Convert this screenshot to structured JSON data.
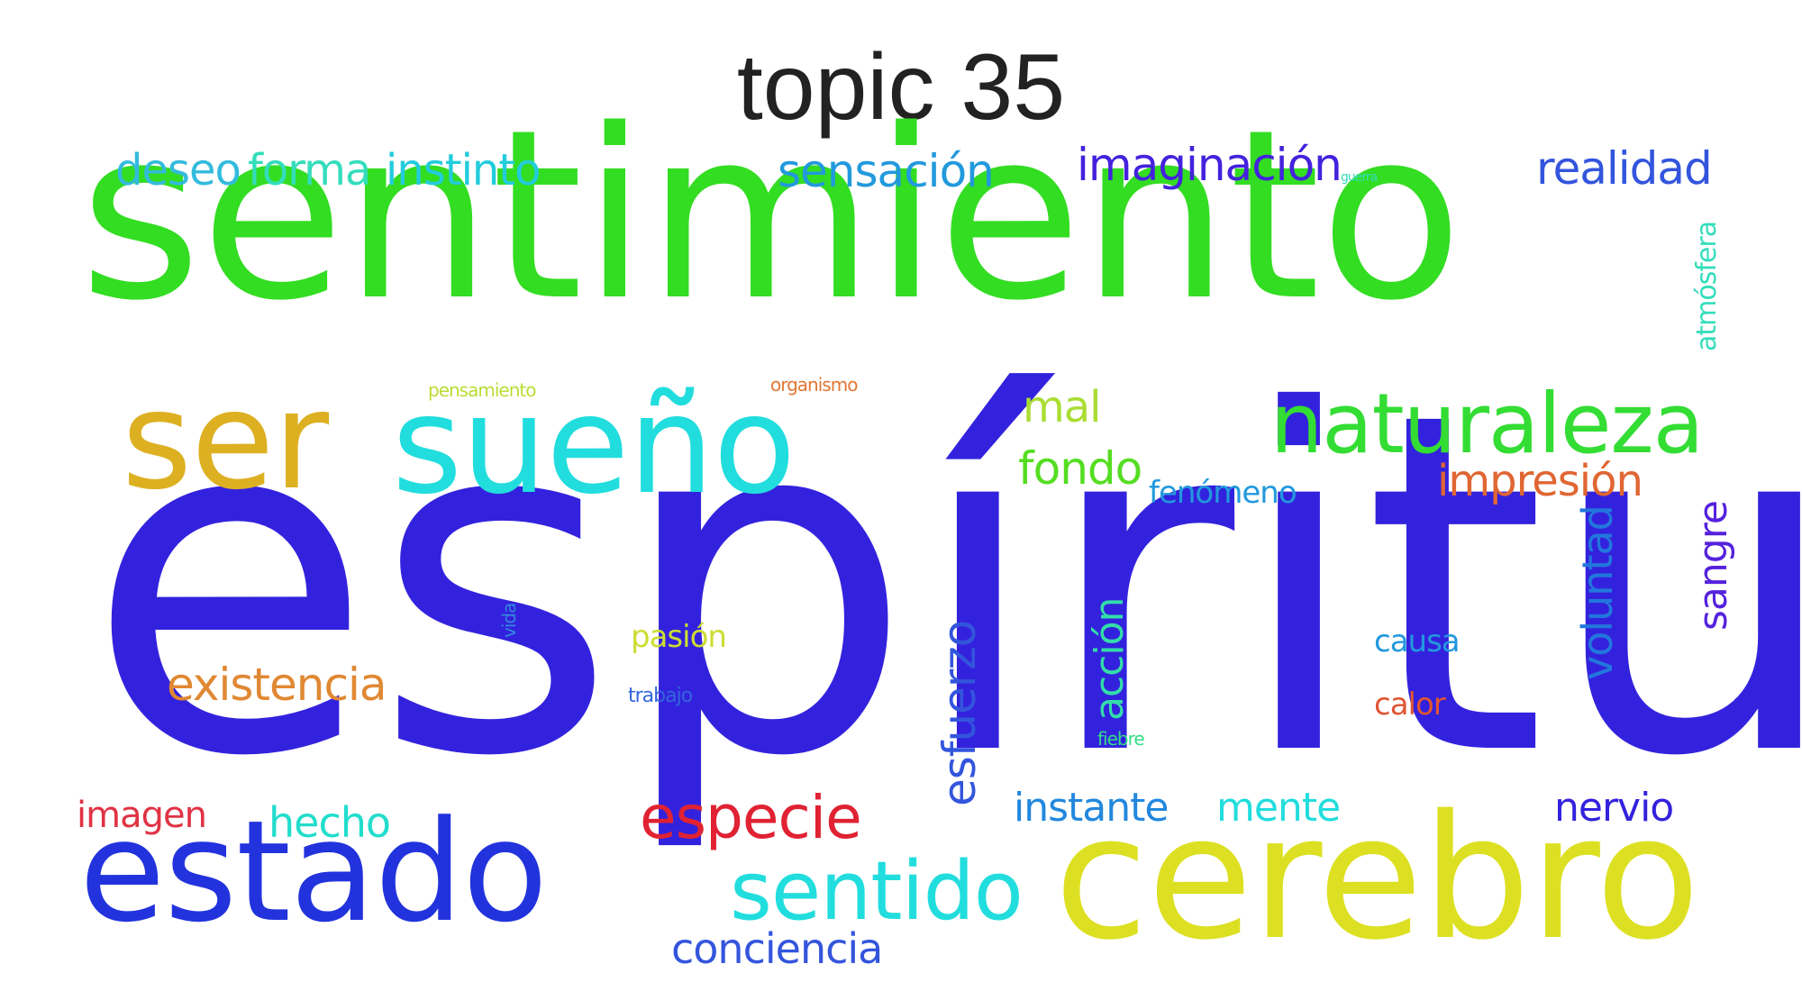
{
  "title": "topic 35",
  "words": [
    {
      "id": "espiritu",
      "text": "espíritu",
      "color": "#3322dd"
    },
    {
      "id": "sentimiento",
      "text": "sentimiento",
      "color": "#33dd22"
    },
    {
      "id": "cerebro",
      "text": "cerebro",
      "color": "#dde022"
    },
    {
      "id": "estado",
      "text": "estado",
      "color": "#2233dd"
    },
    {
      "id": "ser",
      "text": "ser",
      "color": "#ddb022"
    },
    {
      "id": "sueno",
      "text": "sueño",
      "color": "#22dddd"
    },
    {
      "id": "naturaleza",
      "text": "naturaleza",
      "color": "#33dd33"
    },
    {
      "id": "sentido",
      "text": "sentido",
      "color": "#22dddd"
    },
    {
      "id": "especie",
      "text": "especie",
      "color": "#e02233"
    },
    {
      "id": "existencia",
      "text": "existencia",
      "color": "#e08833"
    },
    {
      "id": "esfuerzo",
      "text": "esfuerzo",
      "color": "#3355dd"
    },
    {
      "id": "accion",
      "text": "acción",
      "color": "#33ddaa"
    },
    {
      "id": "voluntad",
      "text": "voluntad",
      "color": "#2277dd"
    },
    {
      "id": "sangre",
      "text": "sangre",
      "color": "#5522dd"
    },
    {
      "id": "impresion",
      "text": "impresión",
      "color": "#e06633"
    },
    {
      "id": "fondo",
      "text": "fondo",
      "color": "#55dd22"
    },
    {
      "id": "mal",
      "text": "mal",
      "color": "#aadd33"
    },
    {
      "id": "realidad",
      "text": "realidad",
      "color": "#3355dd"
    },
    {
      "id": "imaginacion",
      "text": "imaginación",
      "color": "#4422dd"
    },
    {
      "id": "sensacion",
      "text": "sensación",
      "color": "#2299dd"
    },
    {
      "id": "deseo",
      "text": "deseo",
      "color": "#33bbdd"
    },
    {
      "id": "forma",
      "text": "forma",
      "color": "#33ddbb"
    },
    {
      "id": "instinto",
      "text": "instinto",
      "color": "#22ccdd"
    },
    {
      "id": "conciencia",
      "text": "conciencia",
      "color": "#3355dd"
    },
    {
      "id": "instante",
      "text": "instante",
      "color": "#2288dd"
    },
    {
      "id": "mente",
      "text": "mente",
      "color": "#22dddd"
    },
    {
      "id": "nervio",
      "text": "nervio",
      "color": "#3322dd"
    },
    {
      "id": "hecho",
      "text": "hecho",
      "color": "#22ddcc"
    },
    {
      "id": "imagen",
      "text": "imagen",
      "color": "#e03344"
    },
    {
      "id": "fenomeno",
      "text": "fenómeno",
      "color": "#2299dd"
    },
    {
      "id": "causa",
      "text": "causa",
      "color": "#2299dd"
    },
    {
      "id": "calor",
      "text": "calor",
      "color": "#e05533"
    },
    {
      "id": "pasion",
      "text": "pasión",
      "color": "#ccdd33"
    },
    {
      "id": "trabajo",
      "text": "trabajo",
      "color": "#3366dd"
    },
    {
      "id": "fiebre",
      "text": "fiebre",
      "color": "#33dd88"
    },
    {
      "id": "vida",
      "text": "vida",
      "color": "#3388dd"
    },
    {
      "id": "atmosfera",
      "text": "atmósfera",
      "color": "#33ddbb"
    },
    {
      "id": "pensamiento",
      "text": "pensamiento",
      "color": "#bbdd33"
    },
    {
      "id": "organismo",
      "text": "organismo",
      "color": "#e07733"
    },
    {
      "id": "guerra",
      "text": "guerra",
      "color": "#33ddbb"
    }
  ]
}
